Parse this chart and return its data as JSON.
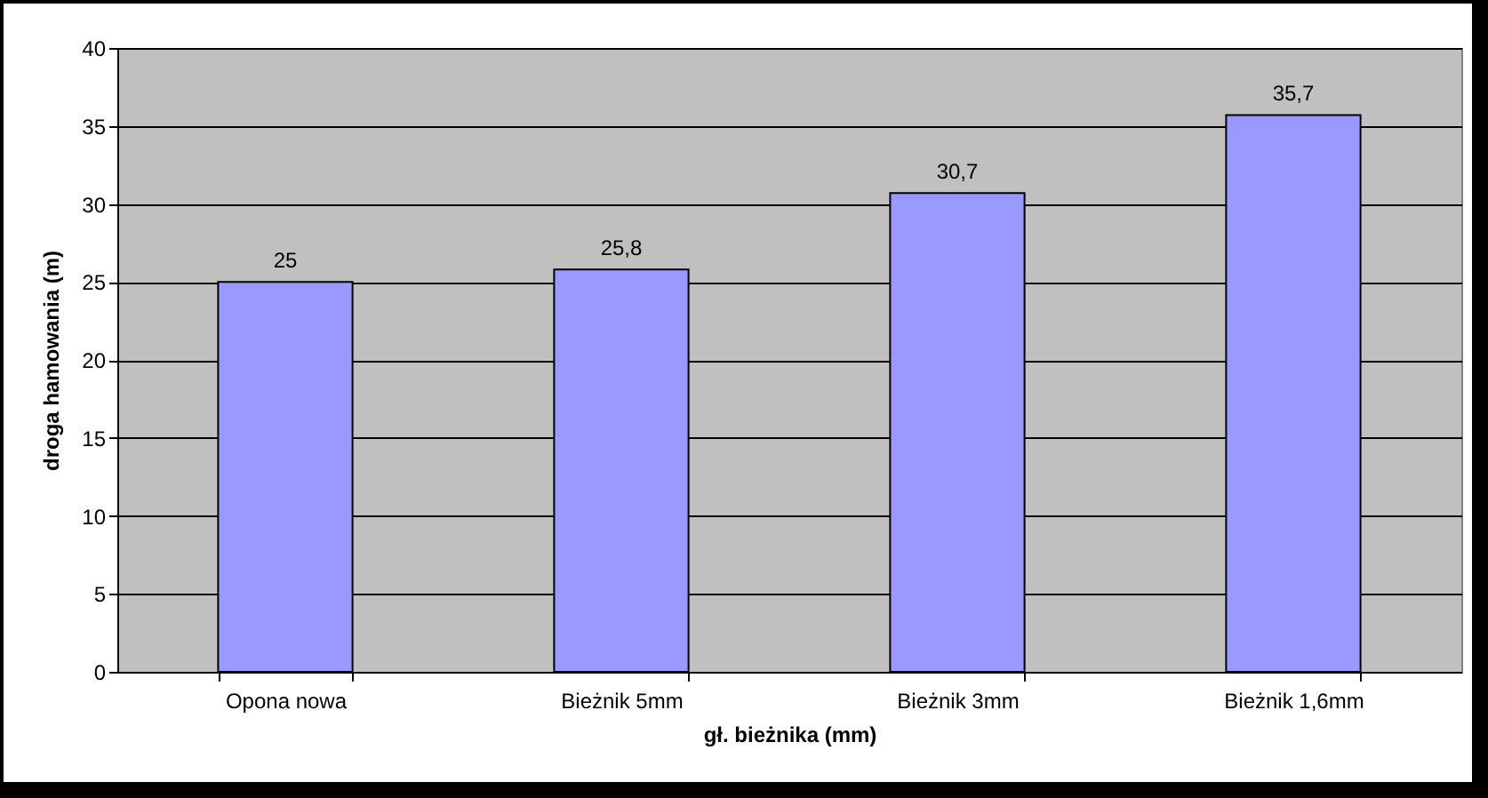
{
  "chart_data": {
    "type": "bar",
    "xlabel": "gł. bieżnika (mm)",
    "ylabel": "droga hamowania (m)",
    "categories": [
      "Opona nowa",
      "Bieżnik 5mm",
      "Bieżnik 3mm",
      "Bieżnik 1,6mm"
    ],
    "values": [
      25,
      25.8,
      30.7,
      35.7
    ],
    "value_labels": [
      "25",
      "25,8",
      "30,7",
      "35,7"
    ],
    "color": "#9999ff",
    "ylim": [
      0,
      40
    ],
    "yticks": [
      0,
      5,
      10,
      15,
      20,
      25,
      30,
      35,
      40
    ],
    "grid": "y"
  }
}
